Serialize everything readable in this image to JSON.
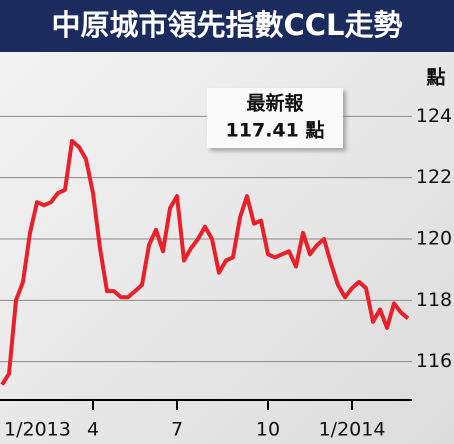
{
  "chart_data": {
    "type": "line",
    "title": "中原城市領先指數CCL走勢",
    "y_unit": "點",
    "annotation": [
      "最新報",
      "117.41 點"
    ],
    "categories": [
      "1/2013",
      null,
      null,
      null,
      null,
      null,
      null,
      null,
      null,
      null,
      null,
      null,
      null,
      "4",
      null,
      null,
      null,
      null,
      null,
      null,
      null,
      null,
      null,
      null,
      null,
      "7",
      null,
      null,
      null,
      null,
      null,
      null,
      null,
      null,
      null,
      null,
      null,
      null,
      "10",
      null,
      null,
      null,
      null,
      null,
      null,
      null,
      null,
      null,
      null,
      null,
      "1/2014",
      null,
      null,
      null,
      null,
      null,
      null,
      null,
      null
    ],
    "series": [
      {
        "color": "#e8202a",
        "values": [
          115.25,
          115.6,
          118.0,
          118.6,
          120.2,
          121.2,
          121.1,
          121.2,
          121.5,
          121.6,
          123.2,
          123.0,
          122.6,
          121.5,
          119.7,
          118.3,
          118.3,
          118.1,
          118.1,
          118.3,
          118.5,
          119.8,
          120.3,
          119.6,
          121.0,
          121.4,
          119.3,
          119.7,
          120.0,
          120.4,
          120.0,
          118.9,
          119.3,
          119.4,
          120.7,
          121.4,
          120.5,
          120.6,
          119.5,
          119.4,
          119.5,
          119.6,
          119.1,
          120.2,
          119.5,
          119.8,
          120.0,
          119.2,
          118.5,
          118.1,
          118.4,
          118.6,
          118.4,
          117.3,
          117.7,
          117.1,
          117.9,
          117.6,
          117.41
        ]
      }
    ],
    "ylim": [
      114.75,
      126
    ],
    "yticks": [
      116,
      118,
      120,
      122,
      124
    ],
    "grid": true
  }
}
